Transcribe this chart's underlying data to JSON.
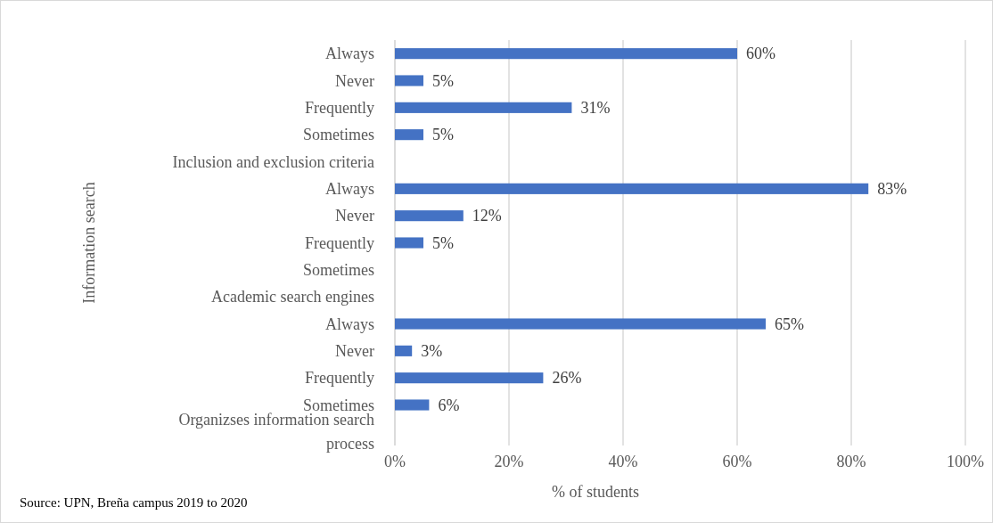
{
  "chart_data": {
    "type": "bar",
    "orientation": "horizontal",
    "ylabel": "Information search",
    "xlabel": "% of students",
    "categories": [
      "Always",
      "Never",
      "Frequently",
      "Sometimes",
      "Inclusion and exclusion criteria",
      "Always",
      "Never",
      "Frequently",
      "Sometimes",
      "Academic search engines",
      "Always",
      "Never",
      "Frequently",
      "Sometimes",
      "Organizses information search process"
    ],
    "values": [
      60,
      5,
      31,
      5,
      null,
      83,
      12,
      5,
      null,
      null,
      65,
      3,
      26,
      6,
      null
    ],
    "value_labels": [
      "60%",
      "5%",
      "31%",
      "5%",
      null,
      "83%",
      "12%",
      "5%",
      null,
      null,
      "65%",
      "3%",
      "26%",
      "6%",
      null
    ],
    "color": "#4472c4",
    "xlim": [
      0,
      100
    ],
    "xticks": [
      {
        "value": 0,
        "label": "0%"
      },
      {
        "value": 20,
        "label": "20%"
      },
      {
        "value": 40,
        "label": "40%"
      },
      {
        "value": 60,
        "label": "60%"
      },
      {
        "value": 80,
        "label": "80%"
      },
      {
        "value": 100,
        "label": "100%"
      }
    ],
    "grid": "x",
    "annotations": [
      "Source: UPN, Breña campus 2019 to 2020"
    ]
  }
}
